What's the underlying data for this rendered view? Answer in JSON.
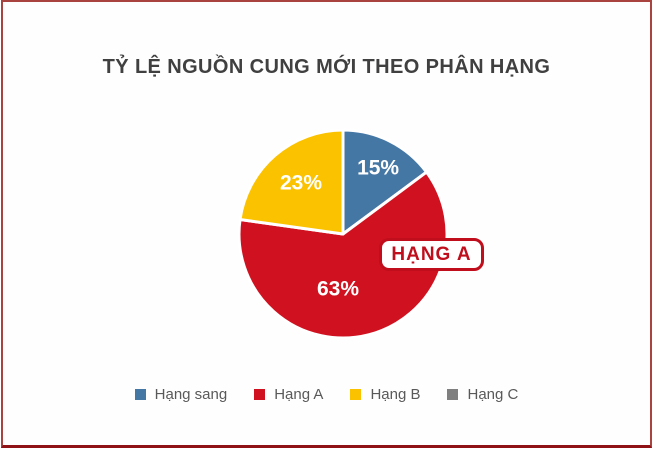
{
  "chart_data": {
    "type": "pie",
    "title": "TỶ LỆ NGUỒN CUNG MỚI THEO PHÂN HẠNG",
    "categories": [
      "Hạng sang",
      "Hạng A",
      "Hạng B",
      "Hạng C"
    ],
    "values": [
      15,
      63,
      23,
      0
    ],
    "value_labels": [
      "15%",
      "63%",
      "23%",
      ""
    ],
    "colors": [
      "#4577a5",
      "#d01220",
      "#fbc200",
      "#7f7f7f"
    ],
    "start_angle_deg": 0,
    "direction": "clockwise",
    "legend_position": "bottom",
    "annotation": "HẠNG A"
  },
  "callout": {
    "label": "HẠNG A",
    "color": "#c00e1c"
  },
  "styles": {
    "title_color": "#404040",
    "legend_text_color": "#595959",
    "slice_separator_color": "#ffffff",
    "frame_border_color": "#a84340",
    "frame_bottom_color": "#8e1216"
  }
}
